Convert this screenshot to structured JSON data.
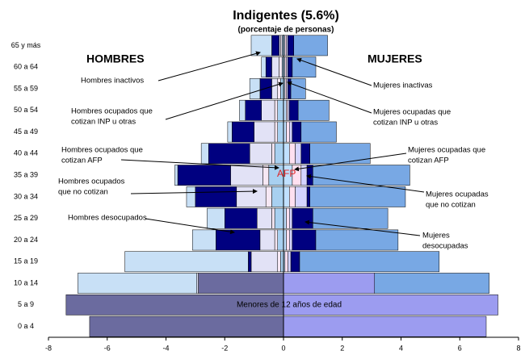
{
  "chart_data": {
    "type": "pyramid",
    "title": "Indigentes (5.6%)",
    "subtitle": "(porcentaje de personas)",
    "categories": [
      "0 a 4",
      "5 a 9",
      "10 a 14",
      "15 a 19",
      "20 a 24",
      "25 a 29",
      "30 a 34",
      "35 a 39",
      "40 a 44",
      "45 a 49",
      "50 a 54",
      "55 a 59",
      "60 a 64",
      "65 y más"
    ],
    "series": [
      {
        "color": "#6b6b9f",
        "values": [
          -6.6,
          -7.4,
          -2.9,
          0,
          0,
          0,
          0,
          0,
          0,
          0,
          0,
          0,
          0,
          0
        ]
      },
      {
        "color": "#a8d0f0",
        "values": [
          0,
          0,
          0,
          -0.1,
          -0.2,
          -0.3,
          -0.4,
          -0.5,
          -0.3,
          -0.2,
          -0.2,
          -0.1,
          -0.05,
          -0.05
        ]
      },
      {
        "color": "#f6e8f4",
        "values": [
          0,
          0,
          0,
          -0.1,
          -0.1,
          -0.1,
          -0.2,
          -0.2,
          -0.1,
          -0.1,
          -0.1,
          -0.1,
          -0.1,
          -0.05
        ]
      },
      {
        "color": "#e2e2f6",
        "values": [
          0,
          0,
          -0.05,
          -0.9,
          -0.5,
          -0.5,
          -1.0,
          -1.1,
          -0.75,
          -0.7,
          -0.45,
          -0.2,
          -0.25,
          -0.05
        ]
      },
      {
        "color": "#000080",
        "values": [
          0,
          0,
          0,
          -0.1,
          -1.5,
          -1.1,
          -1.4,
          -1.8,
          -1.4,
          -0.75,
          -0.55,
          -0.4,
          -0.2,
          -0.25
        ]
      },
      {
        "color": "#c8e0f6",
        "values": [
          0,
          0,
          -4.05,
          -4.2,
          -0.8,
          -0.6,
          -0.3,
          -0.1,
          -0.25,
          -0.15,
          -0.2,
          -0.35,
          -0.15,
          -0.7
        ]
      },
      {
        "color": "#9c9cf0",
        "values": [
          6.9,
          7.3,
          3.1,
          0,
          0,
          0,
          0,
          0,
          0,
          0,
          0,
          0,
          0,
          0
        ]
      },
      {
        "color": "#c0e0ff",
        "values": [
          0,
          0,
          0,
          0.05,
          0.1,
          0.1,
          0.2,
          0.3,
          0.2,
          0.1,
          0.1,
          0.05,
          0.05,
          0.05
        ]
      },
      {
        "color": "#ffe0f0",
        "values": [
          0,
          0,
          0,
          0.1,
          0.1,
          0.1,
          0.2,
          0.3,
          0.2,
          0.1,
          0.05,
          0.05,
          0.05,
          0.05
        ]
      },
      {
        "color": "#d4d4ff",
        "values": [
          0,
          0,
          0,
          0.1,
          0.1,
          0.1,
          0.4,
          0.2,
          0.2,
          0.1,
          0.05,
          0.05,
          0.05,
          0.05
        ]
      },
      {
        "color": "#000080",
        "values": [
          0,
          0,
          0,
          0.3,
          0.8,
          0.7,
          0.1,
          0.2,
          0.3,
          0.3,
          0.3,
          0.1,
          0.15,
          0.2
        ]
      },
      {
        "color": "#78a8e4",
        "values": [
          0,
          0,
          3.9,
          4.75,
          2.8,
          2.55,
          3.25,
          3.3,
          2.05,
          1.2,
          1.05,
          0.5,
          0.8,
          1.15
        ]
      }
    ],
    "xlim": [
      -8,
      8
    ],
    "xticks": [
      -8,
      -6,
      -4,
      -2,
      0,
      2,
      4,
      6,
      8
    ],
    "side_labels": [
      "HOMBRES",
      "MUJERES"
    ],
    "center_label": "AFP",
    "base_label": "Menores de 12 años de edad",
    "annotations": [
      [
        "Hombres inactivos"
      ],
      [
        "Hombres ocupados que",
        "cotizan INP u otras"
      ],
      [
        "Hombres ocupados que",
        "cotizan AFP"
      ],
      [
        "Hombres ocupados",
        "que no cotizan"
      ],
      [
        "Hombres desocupados"
      ],
      [
        "Mujeres inactivas"
      ],
      [
        "Mujeres ocupadas que",
        "cotizan INP u otras"
      ],
      [
        "Mujeres ocupadas que",
        "cotizan AFP"
      ],
      [
        "Mujeres ocupadas",
        "que no cotizan"
      ],
      [
        "Mujeres",
        "desocupadas"
      ]
    ]
  }
}
